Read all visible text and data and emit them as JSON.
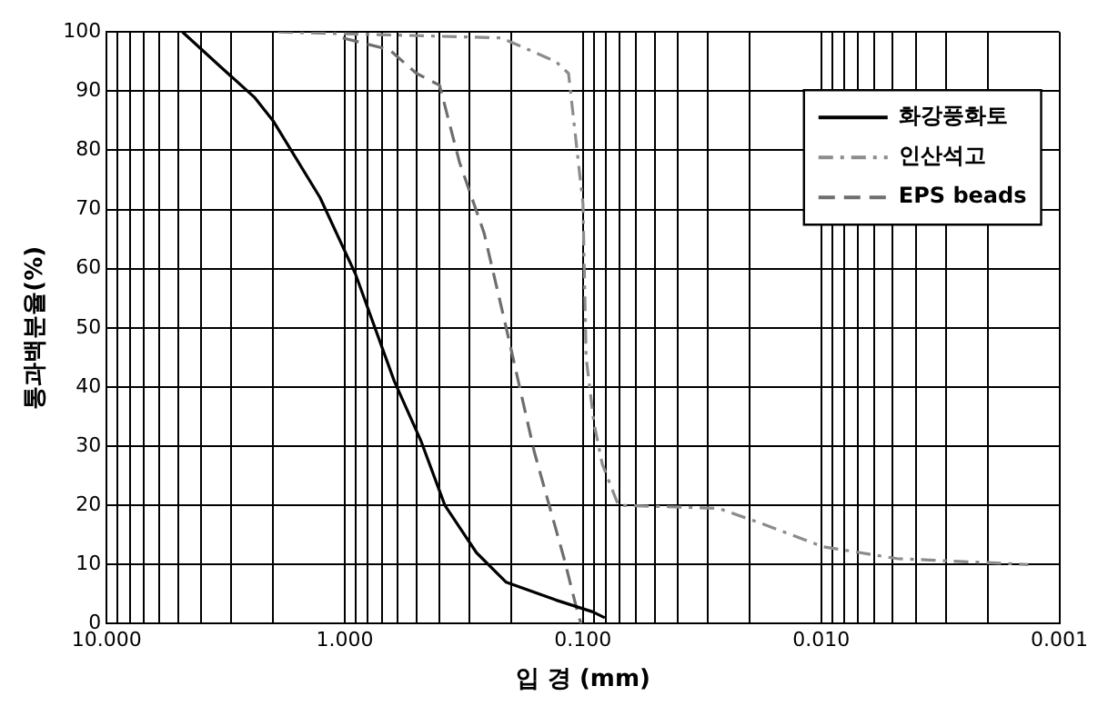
{
  "chart_data": {
    "type": "line",
    "xlabel": "입 경 (mm)",
    "ylabel": "통과백분율(%)",
    "log": "x",
    "xlim": [
      10,
      0.001
    ],
    "ylim": [
      0,
      100
    ],
    "xticks": [
      {
        "value": 10,
        "label": "10.000"
      },
      {
        "value": 9,
        "label": null
      },
      {
        "value": 8,
        "label": null
      },
      {
        "value": 7,
        "label": null
      },
      {
        "value": 6,
        "label": null
      },
      {
        "value": 5,
        "label": null
      },
      {
        "value": 4,
        "label": null
      },
      {
        "value": 3,
        "label": null
      },
      {
        "value": 2,
        "label": null
      },
      {
        "value": 1,
        "label": "1.000"
      },
      {
        "value": 0.9,
        "label": null
      },
      {
        "value": 0.8,
        "label": null
      },
      {
        "value": 0.7,
        "label": null
      },
      {
        "value": 0.6,
        "label": null
      },
      {
        "value": 0.5,
        "label": null
      },
      {
        "value": 0.4,
        "label": null
      },
      {
        "value": 0.3,
        "label": null
      },
      {
        "value": 0.2,
        "label": null
      },
      {
        "value": 0.1,
        "label": "0.100"
      },
      {
        "value": 0.09,
        "label": null
      },
      {
        "value": 0.08,
        "label": null
      },
      {
        "value": 0.07,
        "label": null
      },
      {
        "value": 0.06,
        "label": null
      },
      {
        "value": 0.05,
        "label": null
      },
      {
        "value": 0.04,
        "label": null
      },
      {
        "value": 0.03,
        "label": null
      },
      {
        "value": 0.02,
        "label": null
      },
      {
        "value": 0.01,
        "label": "0.010"
      },
      {
        "value": 0.009,
        "label": null
      },
      {
        "value": 0.008,
        "label": null
      },
      {
        "value": 0.007,
        "label": null
      },
      {
        "value": 0.006,
        "label": null
      },
      {
        "value": 0.005,
        "label": null
      },
      {
        "value": 0.004,
        "label": null
      },
      {
        "value": 0.003,
        "label": null
      },
      {
        "value": 0.002,
        "label": null
      },
      {
        "value": 0.001,
        "label": "0.001"
      }
    ],
    "yticks": [
      0,
      10,
      20,
      30,
      40,
      50,
      60,
      70,
      80,
      90,
      100
    ],
    "grid": true,
    "legend": "top right",
    "marker": "none",
    "series": [
      {
        "name": "화강풍화토",
        "color": "#000000",
        "line_style": "solid",
        "x": [
          4.8,
          3.3,
          2.4,
          2.0,
          1.27,
          0.9,
          0.62,
          0.48,
          0.38,
          0.28,
          0.21,
          0.13,
          0.091,
          0.081
        ],
        "values": [
          100,
          94,
          89,
          85,
          72,
          59,
          41,
          31,
          20,
          12,
          7,
          4,
          2,
          1
        ]
      },
      {
        "name": "인산석고",
        "color": "#8c8c8c",
        "line_style": "dashdot",
        "x": [
          1.9,
          0.22,
          0.13,
          0.115,
          0.1,
          0.097,
          0.09,
          0.083,
          0.071,
          0.027,
          0.018,
          0.0098,
          0.0048,
          0.00135
        ],
        "values": [
          100,
          99,
          95,
          93,
          71,
          45,
          34,
          27,
          20,
          19.5,
          17,
          13,
          11,
          10
        ]
      },
      {
        "name": "EPS beads",
        "color": "#6e6e6e",
        "line_style": "dashed",
        "x": [
          1.02,
          0.65,
          0.5,
          0.4,
          0.33,
          0.26,
          0.21,
          0.16,
          0.12,
          0.107,
          0.102
        ],
        "values": [
          99,
          97,
          93,
          91,
          78,
          66,
          50,
          29,
          11,
          3,
          0
        ]
      }
    ]
  }
}
